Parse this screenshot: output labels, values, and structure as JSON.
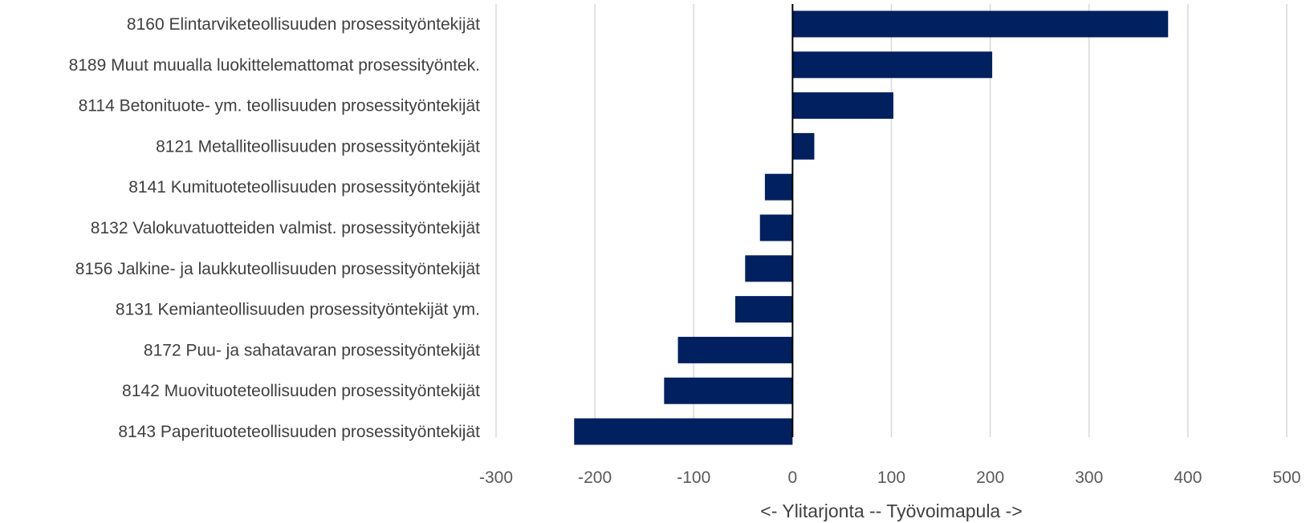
{
  "chart_data": {
    "type": "bar",
    "orientation": "horizontal",
    "categories": [
      "8160 Elintarviketeollisuuden prosessityöntekijät",
      "8189 Muut muualla luokittelemattomat prosessityöntek.",
      "8114 Betonituote- ym. teollisuuden prosessityöntekijät",
      "8121 Metalliteollisuuden prosessityöntekijät",
      "8141 Kumituoteteollisuuden prosessityöntekijät",
      "8132 Valokuvatuotteiden valmist. prosessityöntekijät",
      "8156 Jalkine- ja laukkuteollisuuden prosessityöntekijät",
      "8131 Kemianteollisuuden prosessityöntekijät ym.",
      "8172 Puu- ja sahatavaran prosessityöntekijät",
      "8142 Muovituoteteollisuuden prosessityöntekijät",
      "8143 Paperituoteteollisuuden prosessityöntekijät"
    ],
    "values": [
      380,
      202,
      102,
      22,
      -28,
      -33,
      -48,
      -58,
      -116,
      -130,
      -221
    ],
    "xlabel": "<- Ylitarjonta -- Työvoimapula ->",
    "xlim": [
      -300,
      500
    ],
    "xticks": [
      -300,
      -200,
      -100,
      0,
      100,
      200,
      300,
      400,
      500
    ],
    "xtick_labels": [
      "-300",
      "-200",
      "-100",
      "0",
      "100",
      "200",
      "300",
      "400",
      "500"
    ],
    "grid": "vertical",
    "bar_color": "#002060",
    "grid_color": "#d9d9d9",
    "zero_line_color": "#000000"
  }
}
